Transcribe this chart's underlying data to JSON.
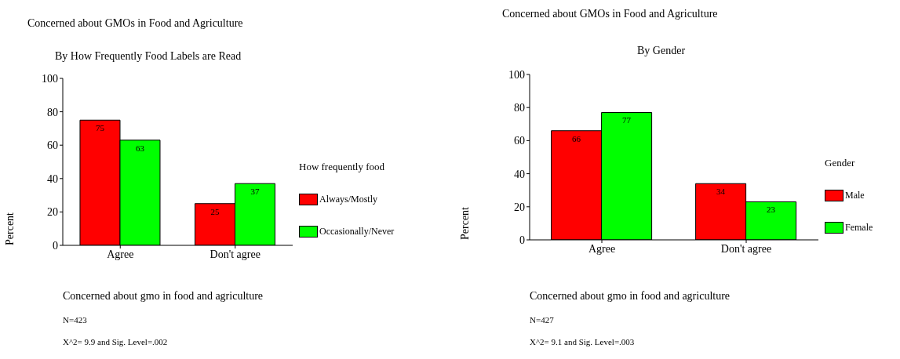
{
  "chart_data": [
    {
      "type": "bar",
      "title": "Concerned about GMOs in Food and Agriculture",
      "subtitle": "By How Frequently Food Labels are Read",
      "xlabel": "Concerned about gmo in food and agriculture",
      "ylabel": "Percent",
      "legend_title": "How frequently food",
      "categories": [
        "Agree",
        "Don't agree"
      ],
      "series": [
        {
          "name": "Always/Mostly",
          "color": "#ff0000",
          "values": [
            75,
            25
          ]
        },
        {
          "name": "Occasionally/Never",
          "color": "#00ff00",
          "values": [
            63,
            37
          ]
        }
      ],
      "ylim": [
        0,
        100
      ],
      "yticks": [
        0,
        20,
        40,
        60,
        80,
        100
      ],
      "grid": false,
      "legend": "right",
      "data_labels": true,
      "annotations": [
        "N=423",
        "X^2= 9.9 and Sig. Level=.002"
      ]
    },
    {
      "type": "bar",
      "title": "Concerned about GMOs in Food and Agriculture",
      "subtitle": "By Gender",
      "xlabel": "Concerned about gmo in food and agriculture",
      "ylabel": "Percent",
      "legend_title": "Gender",
      "categories": [
        "Agree",
        "Don't agree"
      ],
      "series": [
        {
          "name": "Male",
          "color": "#ff0000",
          "values": [
            66,
            34
          ]
        },
        {
          "name": "Female",
          "color": "#00ff00",
          "values": [
            77,
            23
          ]
        }
      ],
      "ylim": [
        0,
        100
      ],
      "yticks": [
        0,
        20,
        40,
        60,
        80,
        100
      ],
      "grid": false,
      "legend": "right",
      "data_labels": true,
      "annotations": [
        "N=427",
        "X^2= 9.1 and Sig. Level=.003"
      ]
    }
  ]
}
